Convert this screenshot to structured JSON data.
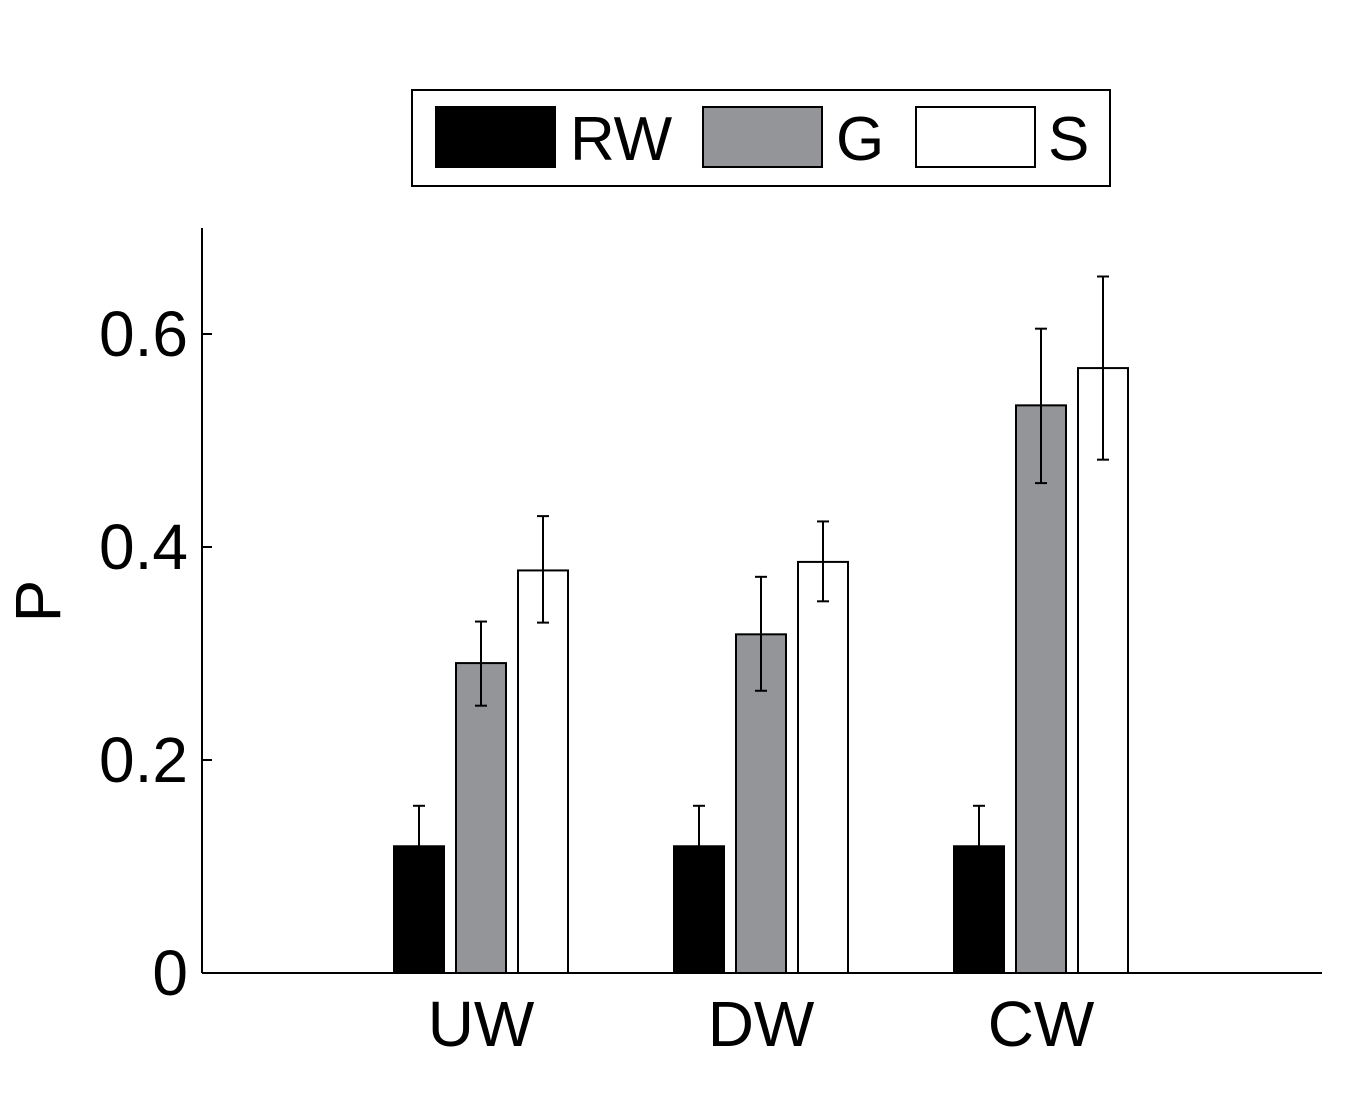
{
  "chart_data": {
    "type": "bar",
    "categories": [
      "UW",
      "DW",
      "CW"
    ],
    "series": [
      {
        "name": "RW",
        "color": "#000000",
        "values": [
          0.119,
          0.119,
          0.119
        ],
        "err_low": [
          0.119,
          0.119,
          0.119
        ],
        "err_high": [
          0.157,
          0.157,
          0.157
        ]
      },
      {
        "name": "G",
        "color": "#939598",
        "values": [
          0.291,
          0.318,
          0.533
        ],
        "err_low": [
          0.251,
          0.265,
          0.46
        ],
        "err_high": [
          0.33,
          0.372,
          0.605
        ]
      },
      {
        "name": "S",
        "color": "#ffffff",
        "values": [
          0.378,
          0.386,
          0.568
        ],
        "err_low": [
          0.329,
          0.349,
          0.482
        ],
        "err_high": [
          0.429,
          0.424,
          0.654
        ]
      }
    ],
    "title": "",
    "xlabel": "",
    "ylabel": "P",
    "ylim": [
      0,
      0.7
    ],
    "yticks": [
      0,
      0.2,
      0.4,
      0.6
    ],
    "ytick_labels": [
      "0",
      "0.2",
      "0.4",
      "0.6"
    ],
    "legend": {
      "placement": "top",
      "orientation": "horizontal"
    },
    "grid": false,
    "error_bars": true
  }
}
